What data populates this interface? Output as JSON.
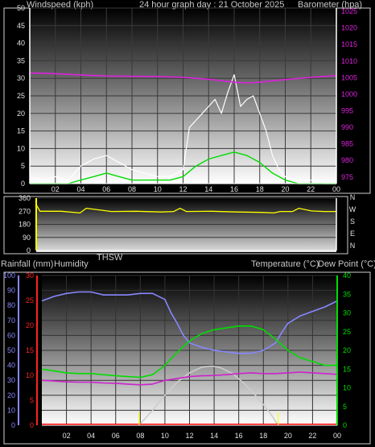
{
  "header": {
    "left_label": "Windspeed (kph)",
    "center_title": "24 hour graph day : 21 October 2025",
    "right_label": "Barometer (hpa)"
  },
  "middle_header": {
    "bottom_labels": [
      "Rainfall (mm)",
      "Humidity",
      "THSW",
      "Temperature (°C)",
      "Dew Point (°C)"
    ]
  },
  "x_ticks": [
    "02",
    "04",
    "06",
    "08",
    "10",
    "12",
    "14",
    "16",
    "18",
    "20",
    "22",
    "00"
  ],
  "chart_data": [
    {
      "type": "line",
      "title": "24 hour graph day : 21 October 2025",
      "xlabel": "",
      "ylabel": "Windspeed (kph)",
      "y2label": "Barometer (hpa)",
      "x_ticks": [
        "02",
        "04",
        "06",
        "08",
        "10",
        "12",
        "14",
        "16",
        "18",
        "20",
        "22",
        "00"
      ],
      "ylim": [
        0,
        50
      ],
      "y_ticks": [
        0,
        5,
        10,
        15,
        20,
        25,
        30,
        35,
        40,
        45,
        50
      ],
      "y2lim": [
        973,
        1026
      ],
      "y2_ticks": [
        975,
        980,
        985,
        990,
        995,
        1000,
        1005,
        1010,
        1015,
        1020,
        1025
      ],
      "series": [
        {
          "color": "#ffffff",
          "axis": "left",
          "x": [
            0,
            1,
            2,
            3,
            4,
            5,
            6,
            7,
            8,
            9,
            10,
            11,
            12,
            12.5,
            13,
            13.5,
            14,
            14.5,
            15,
            15.5,
            16,
            16.5,
            17,
            17.5,
            18,
            18.5,
            19,
            19.5,
            20,
            21,
            22,
            23,
            24
          ],
          "y": [
            2,
            1,
            2,
            1,
            5,
            7,
            8,
            6,
            4,
            3,
            2,
            2,
            4,
            16,
            18,
            20,
            22,
            24,
            20,
            26,
            31,
            22,
            24,
            25,
            20,
            15,
            8,
            4,
            2,
            1,
            1,
            0,
            0
          ]
        },
        {
          "color": "#00dd00",
          "axis": "left",
          "x": [
            0,
            1,
            2,
            3,
            4,
            5,
            6,
            7,
            8,
            9,
            10,
            11,
            12,
            13,
            14,
            15,
            16,
            17,
            18,
            19,
            20,
            21,
            22,
            23,
            24
          ],
          "y": [
            0,
            0,
            0,
            0,
            1,
            2,
            3,
            2,
            1,
            1,
            1,
            1,
            2,
            5,
            7,
            8,
            9,
            8,
            6,
            3,
            1,
            0,
            0,
            0,
            0
          ]
        },
        {
          "color": "#dd22dd",
          "axis": "right",
          "x": [
            0,
            2,
            4,
            6,
            8,
            10,
            12,
            14,
            16,
            17,
            18,
            20,
            22,
            24
          ],
          "y": [
            1006.4,
            1006.2,
            1005.8,
            1005.5,
            1005.4,
            1005.3,
            1005.1,
            1004.5,
            1003.6,
            1003.4,
            1003.6,
            1004.4,
            1005.1,
            1005.6
          ]
        }
      ]
    },
    {
      "type": "line",
      "xlabel": "",
      "ylabel": "",
      "ylim": [
        0,
        360
      ],
      "y_ticks": [
        0,
        90,
        180,
        270,
        360
      ],
      "right_labels": [
        "N",
        "W",
        "S",
        "E",
        "N"
      ],
      "series": [
        {
          "color": "#ffff00",
          "x": [
            0,
            0.3,
            2,
            3.5,
            4,
            6,
            8,
            10,
            11,
            11.5,
            12,
            14,
            16,
            18,
            19,
            19.5,
            20.5,
            21,
            22,
            23,
            24
          ],
          "y": [
            315,
            270,
            270,
            258,
            290,
            268,
            270,
            265,
            268,
            290,
            268,
            270,
            265,
            262,
            258,
            268,
            268,
            290,
            272,
            268,
            268
          ]
        }
      ]
    },
    {
      "type": "line",
      "xlabel": "",
      "ylabel": "Rainfall (mm)",
      "x_ticks": [
        "02",
        "04",
        "06",
        "08",
        "10",
        "12",
        "14",
        "16",
        "18",
        "20",
        "22",
        "00"
      ],
      "humidity_ticks": [
        0,
        10,
        20,
        30,
        40,
        50,
        60,
        70,
        80,
        90,
        100
      ],
      "rainfall_ticks": [
        0,
        5,
        10,
        15,
        20,
        25,
        30
      ],
      "temperature_ticks": [
        0,
        5,
        10,
        15,
        20,
        25,
        30,
        35,
        40
      ],
      "series": [
        {
          "name": "Humidity",
          "color": "#8888ff",
          "x": [
            0,
            1,
            2,
            3,
            4,
            5,
            6,
            7,
            8,
            9,
            10,
            10.5,
            11,
            11.5,
            12,
            13,
            14,
            15,
            16,
            17,
            18,
            19,
            19.5,
            20,
            21,
            22,
            23,
            24
          ],
          "y": [
            83,
            86,
            88,
            89,
            89,
            87,
            87,
            87,
            88,
            88,
            84,
            75,
            68,
            60,
            55,
            52,
            50,
            49,
            48,
            48,
            50,
            55,
            62,
            68,
            73,
            76,
            79,
            83
          ]
        },
        {
          "name": "Temperature (°C)",
          "color": "#00dd00",
          "x": [
            0,
            1,
            2,
            3,
            4,
            5,
            6,
            7,
            8,
            9,
            10,
            11,
            12,
            13,
            14,
            15,
            16,
            17,
            18,
            19,
            20,
            21,
            22,
            23,
            24
          ],
          "y": [
            15,
            14.5,
            14,
            13.8,
            13.8,
            13.5,
            13.2,
            13,
            12.8,
            13.5,
            16,
            19.5,
            22.5,
            24.5,
            25.5,
            26,
            26.5,
            26.5,
            25.5,
            23,
            20,
            18,
            17,
            16,
            16
          ]
        },
        {
          "name": "Dew Point (°C)",
          "color": "#cc22cc",
          "x": [
            0,
            1,
            2,
            3,
            4,
            5,
            6,
            7,
            8,
            9,
            10,
            11,
            12,
            13,
            14,
            15,
            16,
            17,
            18,
            19,
            20,
            21,
            22,
            23,
            24
          ],
          "y": [
            12,
            11.8,
            11.6,
            11.5,
            11.5,
            11.3,
            11.2,
            11,
            10.8,
            11,
            12,
            12.5,
            13,
            13.2,
            13.3,
            13.5,
            13.8,
            14,
            13.8,
            13.8,
            14,
            14.2,
            14,
            13.8,
            13.6
          ]
        },
        {
          "name": "THSW",
          "color": "#cccccc",
          "x": [
            7.9,
            9,
            10,
            11,
            12,
            13,
            13.8,
            14.5,
            15.5,
            16.5,
            17.5,
            18.5,
            19.2
          ],
          "y": [
            0,
            4,
            8,
            11.5,
            14,
            15.5,
            15.8,
            15.4,
            13.8,
            11,
            7.5,
            3.5,
            0
          ]
        },
        {
          "name": "Rainfall (mm)",
          "color": "#ff0000",
          "x": [
            0,
            24
          ],
          "y": [
            0,
            0
          ]
        }
      ]
    }
  ]
}
